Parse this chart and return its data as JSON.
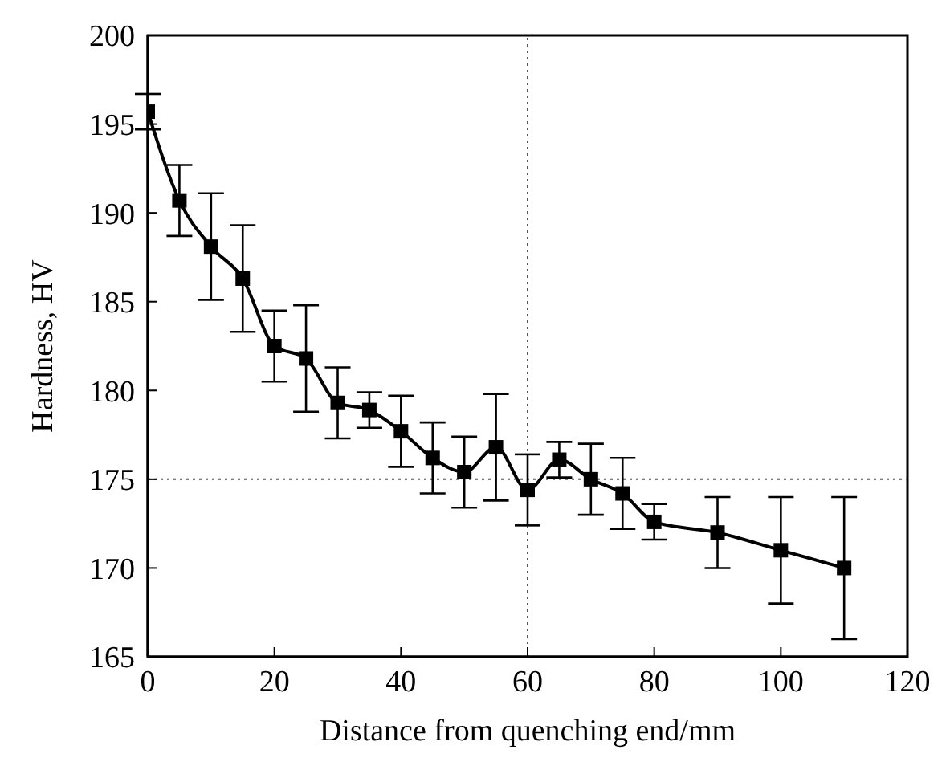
{
  "chart_data": {
    "type": "line",
    "xlabel": "Distance from quenching end/mm",
    "ylabel": "Hardness, HV",
    "x": [
      0,
      5,
      10,
      15,
      20,
      25,
      30,
      35,
      40,
      45,
      50,
      55,
      60,
      65,
      70,
      75,
      80,
      90,
      100,
      110
    ],
    "series": [
      {
        "color": "#000000",
        "values": [
          195.7,
          190.7,
          188.1,
          186.3,
          182.5,
          181.8,
          179.3,
          178.9,
          177.7,
          176.2,
          175.4,
          176.8,
          174.4,
          176.1,
          175.0,
          174.2,
          172.6,
          172.0,
          171.0,
          170.0
        ],
        "errors": [
          1,
          2,
          3,
          3,
          2,
          3,
          2,
          1,
          2,
          2,
          2,
          3,
          2,
          1,
          2,
          2,
          1,
          2,
          3,
          4
        ]
      }
    ],
    "xlim": [
      0,
      120
    ],
    "xticks": [
      0,
      20,
      40,
      60,
      80,
      100,
      120
    ],
    "ylim": [
      165,
      200
    ],
    "yticks": [
      165,
      170,
      175,
      180,
      185,
      190,
      195,
      200
    ],
    "ref_lines": [
      {
        "axis": "y",
        "value": 175,
        "line_style": "dotted"
      },
      {
        "axis": "x",
        "value": 60,
        "line_style": "dotted"
      }
    ],
    "grid": false,
    "legend": false,
    "marker": "square",
    "line_style": "solid"
  }
}
